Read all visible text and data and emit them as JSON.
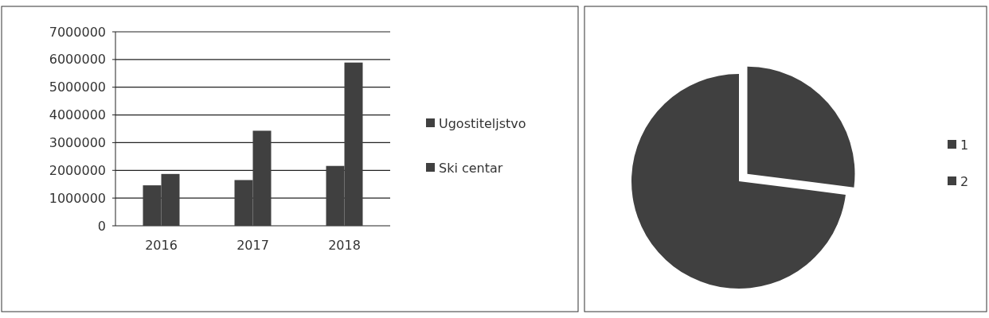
{
  "chart_data": [
    {
      "type": "bar",
      "categories": [
        "2016",
        "2017",
        "2018"
      ],
      "series": [
        {
          "name": "Ugostiteljstvo",
          "color": "#404040",
          "values": [
            1460000,
            1650000,
            2160000
          ]
        },
        {
          "name": "Ski centar",
          "color": "#404040",
          "values": [
            1870000,
            3430000,
            5890000
          ]
        }
      ],
      "ylim": [
        0,
        7000000
      ],
      "yticks": [
        0,
        1000000,
        2000000,
        3000000,
        4000000,
        5000000,
        6000000,
        7000000
      ],
      "grid": "y",
      "legend": "right"
    },
    {
      "type": "pie",
      "categories": [
        "1",
        "2"
      ],
      "values": [
        27,
        73
      ],
      "colors": [
        "#404040",
        "#404040"
      ],
      "legend": "right"
    }
  ]
}
